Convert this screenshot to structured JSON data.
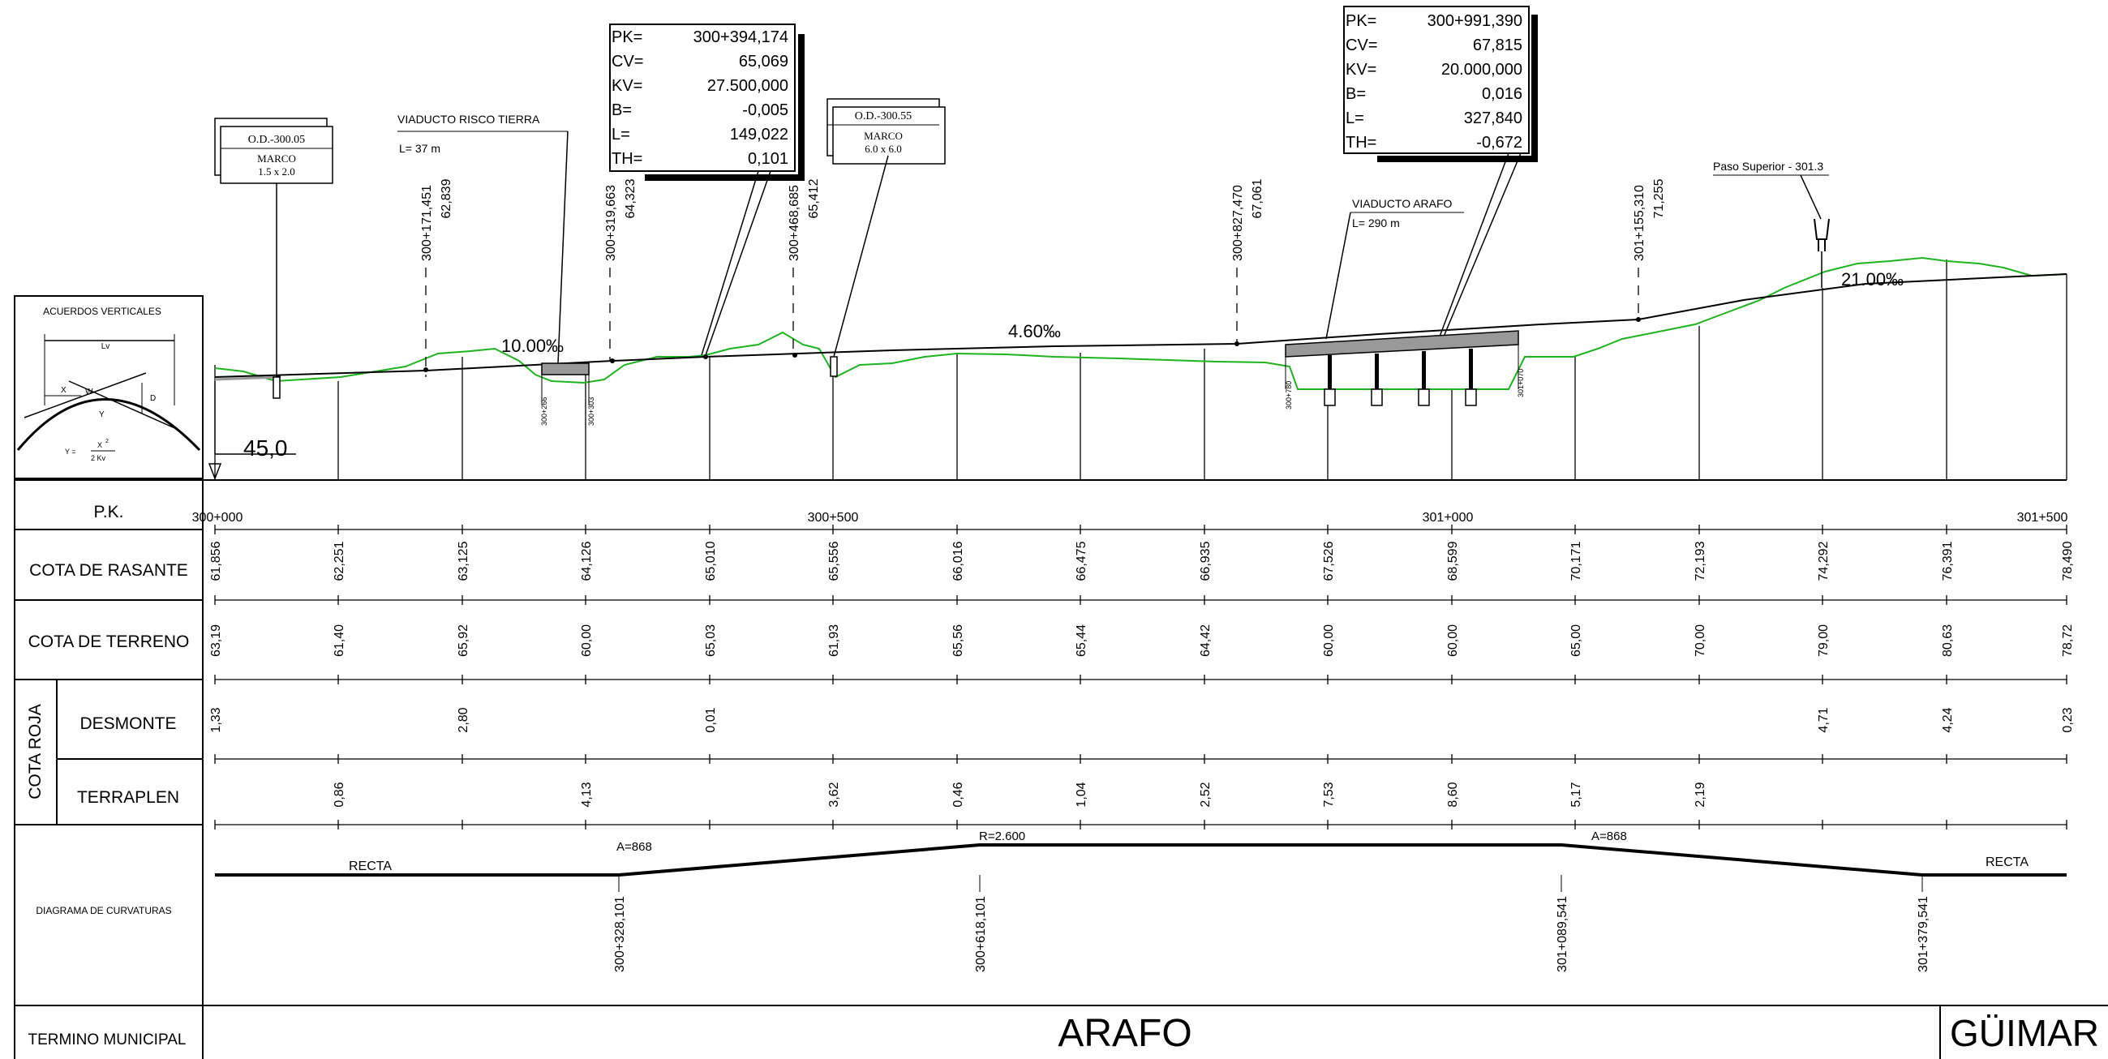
{
  "legend_box": {
    "title": "ACUERDOS VERTICALES",
    "lv": "Lv",
    "x": "X",
    "w": "W",
    "d": "D",
    "y": "Y",
    "formula_lhs": "Y =",
    "formula_num": "X",
    "formula_exp": "2",
    "formula_den": "2  Kv"
  },
  "datum": "45,0",
  "slopes": [
    "10.00‰",
    "4.60‰",
    "21.00‰"
  ],
  "vertical_curves": [
    {
      "rows": [
        [
          "PK=",
          "300+394,174"
        ],
        [
          "CV=",
          "65,069"
        ],
        [
          "KV=",
          "27.500,000"
        ],
        [
          "B=",
          "-0,005"
        ],
        [
          "L=",
          "149,022"
        ],
        [
          "TH=",
          "0,101"
        ]
      ]
    },
    {
      "rows": [
        [
          "PK=",
          "300+991,390"
        ],
        [
          "CV=",
          "67,815"
        ],
        [
          "KV=",
          "20.000,000"
        ],
        [
          "B=",
          "0,016"
        ],
        [
          "L=",
          "327,840"
        ],
        [
          "TH=",
          "-0,672"
        ]
      ]
    }
  ],
  "structures": {
    "od1_title": "O.D.-300.05",
    "od1_type": "MARCO",
    "od1_size": "1.5 x 2.0",
    "od2_title": "O.D.-300.55",
    "od2_type": "MARCO",
    "od2_size": "6.0 x 6.0",
    "viaducto1_name": "VIADUCTO RISCO TIERRA",
    "viaducto1_len": "L= 37 m",
    "viaducto1_start": "300+266",
    "viaducto1_end": "300+303",
    "viaducto2_name": "VIADUCTO ARAFO",
    "viaducto2_len": "L= 290 m",
    "viaducto2_start": "300+780",
    "viaducto2_end": "301+070",
    "paso_superior": "Paso Superior - 301.3"
  },
  "points": [
    {
      "pk": "300+171,451",
      "cota": "62,839"
    },
    {
      "pk": "300+319,663",
      "cota": "64,323"
    },
    {
      "pk": "300+468,685",
      "cota": "65,412"
    },
    {
      "pk": "300+827,470",
      "cota": "67,061"
    },
    {
      "pk": "301+155,310",
      "cota": "71,255"
    }
  ],
  "table": {
    "pk_label": "P.K.",
    "rasante_label": "COTA DE RASANTE",
    "terreno_label": "COTA DE TERRENO",
    "cota_roja_label": "COTA ROJA",
    "desmonte_label": "DESMONTE",
    "terraplen_label": "TERRAPLEN",
    "curvaturas_label": "DIAGRAMA DE CURVATURAS",
    "termino_label": "TERMINO MUNICIPAL",
    "pk_ticks": [
      "300+000",
      "300+500",
      "301+000",
      "301+500"
    ],
    "rasante": [
      "61,856",
      "62,251",
      "63,125",
      "64,126",
      "65,010",
      "65,556",
      "66,016",
      "66,475",
      "66,935",
      "67,526",
      "68,599",
      "70,171",
      "72,193",
      "74,292",
      "76,391",
      "78,490"
    ],
    "terreno": [
      "63,19",
      "61,40",
      "65,92",
      "60,00",
      "65,03",
      "61,93",
      "65,56",
      "65,44",
      "64,42",
      "60,00",
      "60,00",
      "65,00",
      "70,00",
      "79,00",
      "80,63",
      "78,72"
    ],
    "desmonte": [
      "1,33",
      "",
      "2,80",
      "",
      "0,01",
      "",
      "",
      "",
      "",
      "",
      "",
      "",
      "",
      "4,71",
      "4,24",
      "0,23"
    ],
    "terraplen": [
      "",
      "0,86",
      "",
      "4,13",
      "",
      "3,62",
      "0,46",
      "1,04",
      "2,52",
      "7,53",
      "8,60",
      "5,17",
      "2,19",
      "",
      "",
      ""
    ],
    "curvature": {
      "recta_left": "RECTA",
      "recta_right": "RECTA",
      "a1": "A=868",
      "r": "R=2.600",
      "a2": "A=868",
      "stations": [
        "300+328,101",
        "300+618,101",
        "301+089,541",
        "301+379,541"
      ]
    },
    "municipios": [
      "ARAFO",
      "GÜIMAR"
    ]
  }
}
